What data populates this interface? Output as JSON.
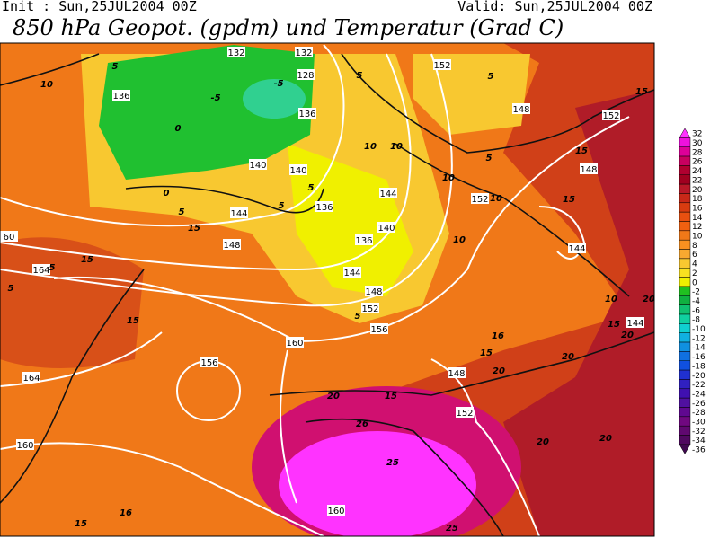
{
  "header": {
    "init": "Init : Sun,25JUL2004 00Z",
    "valid": "Valid: Sun,25JUL2004 00Z",
    "title": "850 hPa Geopot. (gpdm) und Temperatur (Grad C)"
  },
  "colorbar": {
    "labels": [
      "32",
      "30",
      "28",
      "26",
      "24",
      "22",
      "20",
      "18",
      "16",
      "14",
      "12",
      "10",
      "8",
      "6",
      "4",
      "2",
      "0",
      "-2",
      "-4",
      "-6",
      "-8",
      "-10",
      "-12",
      "-14",
      "-16",
      "-18",
      "-20",
      "-22",
      "-24",
      "-26",
      "-28",
      "-30",
      "-32",
      "-34",
      "-36"
    ],
    "colors": [
      "#ff33ff",
      "#ee11dd",
      "#dd0099",
      "#c80060",
      "#b00030",
      "#a00020",
      "#b81828",
      "#c82818",
      "#d83c10",
      "#e85010",
      "#f06010",
      "#f07818",
      "#f89020",
      "#f8a830",
      "#f8c830",
      "#f8e020",
      "#f0f000",
      "#20c020",
      "#10b040",
      "#10c070",
      "#10d0a0",
      "#10d0d0",
      "#10b0e0",
      "#1090e0",
      "#1070e0",
      "#1050e0",
      "#2030d0",
      "#3020c0",
      "#4010b0",
      "#5010a0",
      "#600890",
      "#700880",
      "#600870",
      "#500860",
      "#400850"
    ]
  },
  "geopotential_labels": [
    "132",
    "132",
    "128",
    "136",
    "136",
    "140",
    "140",
    "136",
    "144",
    "144",
    "140",
    "136",
    "148",
    "144",
    "148",
    "152",
    "156",
    "160",
    "152",
    "148",
    "152",
    "148",
    "152",
    "144",
    "144",
    "60",
    "164",
    "156",
    "164",
    "160",
    "148",
    "152",
    "160"
  ],
  "temperature_labels": [
    "10",
    "-5",
    "-5",
    "0",
    "0",
    "5",
    "5",
    "5",
    "15",
    "10",
    "10",
    "5",
    "10",
    "10",
    "15",
    "15",
    "10",
    "5",
    "5",
    "5",
    "15",
    "15",
    "5",
    "5",
    "15",
    "5",
    "10",
    "15",
    "20",
    "20",
    "16",
    "15",
    "20",
    "20",
    "15",
    "20",
    "26",
    "25",
    "20",
    "20",
    "16",
    "15",
    "25"
  ]
}
